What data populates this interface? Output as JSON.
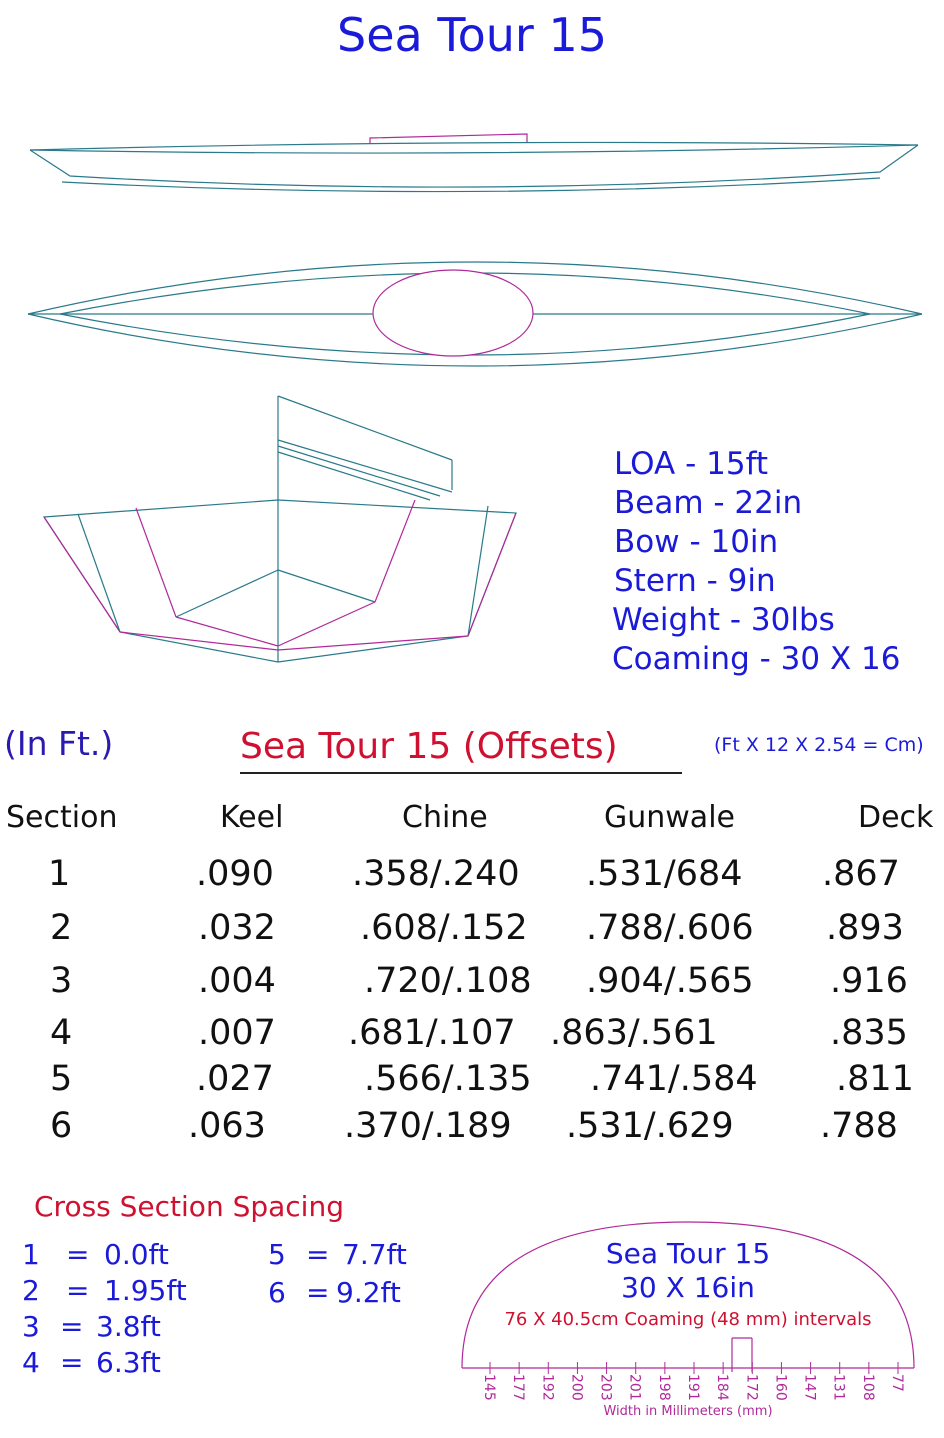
{
  "title": "Sea Tour 15",
  "specs": [
    "LOA - 15ft",
    "Beam - 22in",
    "Bow - 10in",
    "Stern - 9in",
    "Weight - 30lbs",
    "Coaming - 30 X 16"
  ],
  "units_note": "(In Ft.)",
  "offsets": {
    "title": "Sea Tour 15 (Offsets)",
    "conversion": "(Ft X 12 X 2.54 = Cm)",
    "headers": [
      "Section",
      "Keel",
      "Chine",
      "Gunwale",
      "Deck"
    ],
    "rows": [
      [
        "1",
        ".090",
        ".358/.240",
        ".531/684",
        ".867"
      ],
      [
        "2",
        ".032",
        ".608/.152",
        ".788/.606",
        ".893"
      ],
      [
        "3",
        ".004",
        ".720/.108",
        ".904/.565",
        ".916"
      ],
      [
        "4",
        ".007",
        ".681/.107",
        ".863/.561",
        ".835"
      ],
      [
        "5",
        ".027",
        ".566/.135",
        ".741/.584",
        ".811"
      ],
      [
        "6",
        ".063",
        ".370/.189",
        ".531/.629",
        ".788"
      ]
    ]
  },
  "cross_section": {
    "title": "Cross Section Spacing",
    "items": [
      {
        "num": "1",
        "eq": "=",
        "val": "0.0ft"
      },
      {
        "num": "2",
        "eq": "=",
        "val": "1.95ft"
      },
      {
        "num": "3",
        "eq": "=",
        "val": "3.8ft"
      },
      {
        "num": "4",
        "eq": "=",
        "val": "6.3ft"
      },
      {
        "num": "5",
        "eq": "=",
        "val": "7.7ft"
      },
      {
        "num": "6",
        "eq": "=",
        "val": "9.2ft"
      }
    ]
  },
  "coaming": {
    "title": "Sea Tour 15",
    "size": "30 X 16in",
    "note": "76 X 40.5cm Coaming (48 mm) intervals",
    "ticks": [
      "145",
      "177",
      "192",
      "200",
      "203",
      "201",
      "198",
      "191",
      "184",
      "172",
      "160",
      "147",
      "131",
      "108",
      "77"
    ],
    "axis_label": "Width in Millimeters (mm)"
  },
  "colors": {
    "hull_line": "#2a7a8a",
    "magenta": "#b02a9a",
    "blue_text": "#1a1ad8",
    "red_text": "#d01030"
  }
}
